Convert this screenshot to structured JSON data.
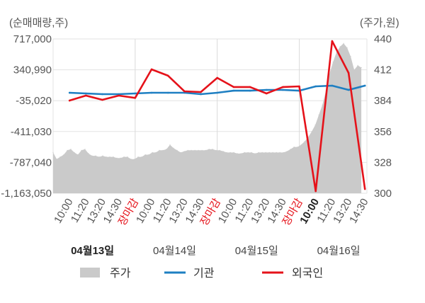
{
  "chart_data": {
    "type": "line",
    "grid": true,
    "legend_position": "bottom",
    "categories": [
      "10:00",
      "11:20",
      "13:20",
      "14:30",
      "장마감",
      "10:00",
      "11:20",
      "13:20",
      "14:30",
      "장마감",
      "10:00",
      "11:20",
      "13:20",
      "14:30",
      "장마감",
      "10:00",
      "11:20",
      "13:20",
      "14:30"
    ],
    "x_group_labels": [
      "04월13일",
      "04월14일",
      "04월15일",
      "04월16일"
    ],
    "left_axis": {
      "label": "(순매매량,주)",
      "ylim": [
        -1163050,
        717000
      ],
      "ticks": [
        717000,
        340990,
        -35020,
        -411030,
        -787040,
        -1163050
      ],
      "tick_labels": [
        "717,000",
        "340,990",
        "-35,020",
        "-411,030",
        "-787,040",
        "-1,163,050"
      ],
      "series": [
        {
          "name": "기관",
          "type": "line",
          "color": "#1e7fc2",
          "values": [
            62000,
            53000,
            44000,
            44000,
            53000,
            62000,
            62000,
            62000,
            44000,
            62000,
            87000,
            87000,
            96000,
            96000,
            87000,
            139000,
            148000,
            96000,
            148000
          ]
        },
        {
          "name": "외국인",
          "type": "line",
          "color": "#e5121a",
          "values": [
            -33000,
            27000,
            -25000,
            27000,
            -1000,
            346000,
            269000,
            79000,
            70000,
            243000,
            131000,
            131000,
            53000,
            131000,
            139000,
            -1137000,
            691000,
            303000,
            -1111000
          ]
        }
      ]
    },
    "right_axis": {
      "label": "(주가,원)",
      "ylim": [
        300,
        440
      ],
      "ticks": [
        440,
        412,
        384,
        356,
        328,
        300
      ],
      "tick_labels": [
        "440",
        "412",
        "384",
        "356",
        "328",
        "300"
      ],
      "series": [
        {
          "name": "주가",
          "type": "area",
          "color": "#cacaca",
          "values": [
            337,
            331,
            333,
            335,
            339,
            340,
            337,
            335,
            339,
            340,
            336,
            334,
            334,
            333,
            334,
            333,
            333,
            333,
            332,
            332,
            333,
            333,
            331,
            331,
            333,
            333,
            335,
            335,
            337,
            337,
            339,
            339,
            340,
            344,
            341,
            339,
            337,
            338,
            339,
            339,
            339,
            339,
            339,
            339,
            340,
            340,
            339,
            339,
            338,
            337,
            337,
            337,
            336,
            336,
            337,
            337,
            337,
            336,
            337,
            337,
            337,
            337,
            337,
            337,
            337,
            337,
            338,
            340,
            342,
            342,
            344,
            347,
            351,
            356,
            362,
            371,
            380,
            393,
            408,
            419,
            428,
            433,
            436,
            432,
            424,
            412,
            416,
            414
          ]
        }
      ]
    }
  }
}
